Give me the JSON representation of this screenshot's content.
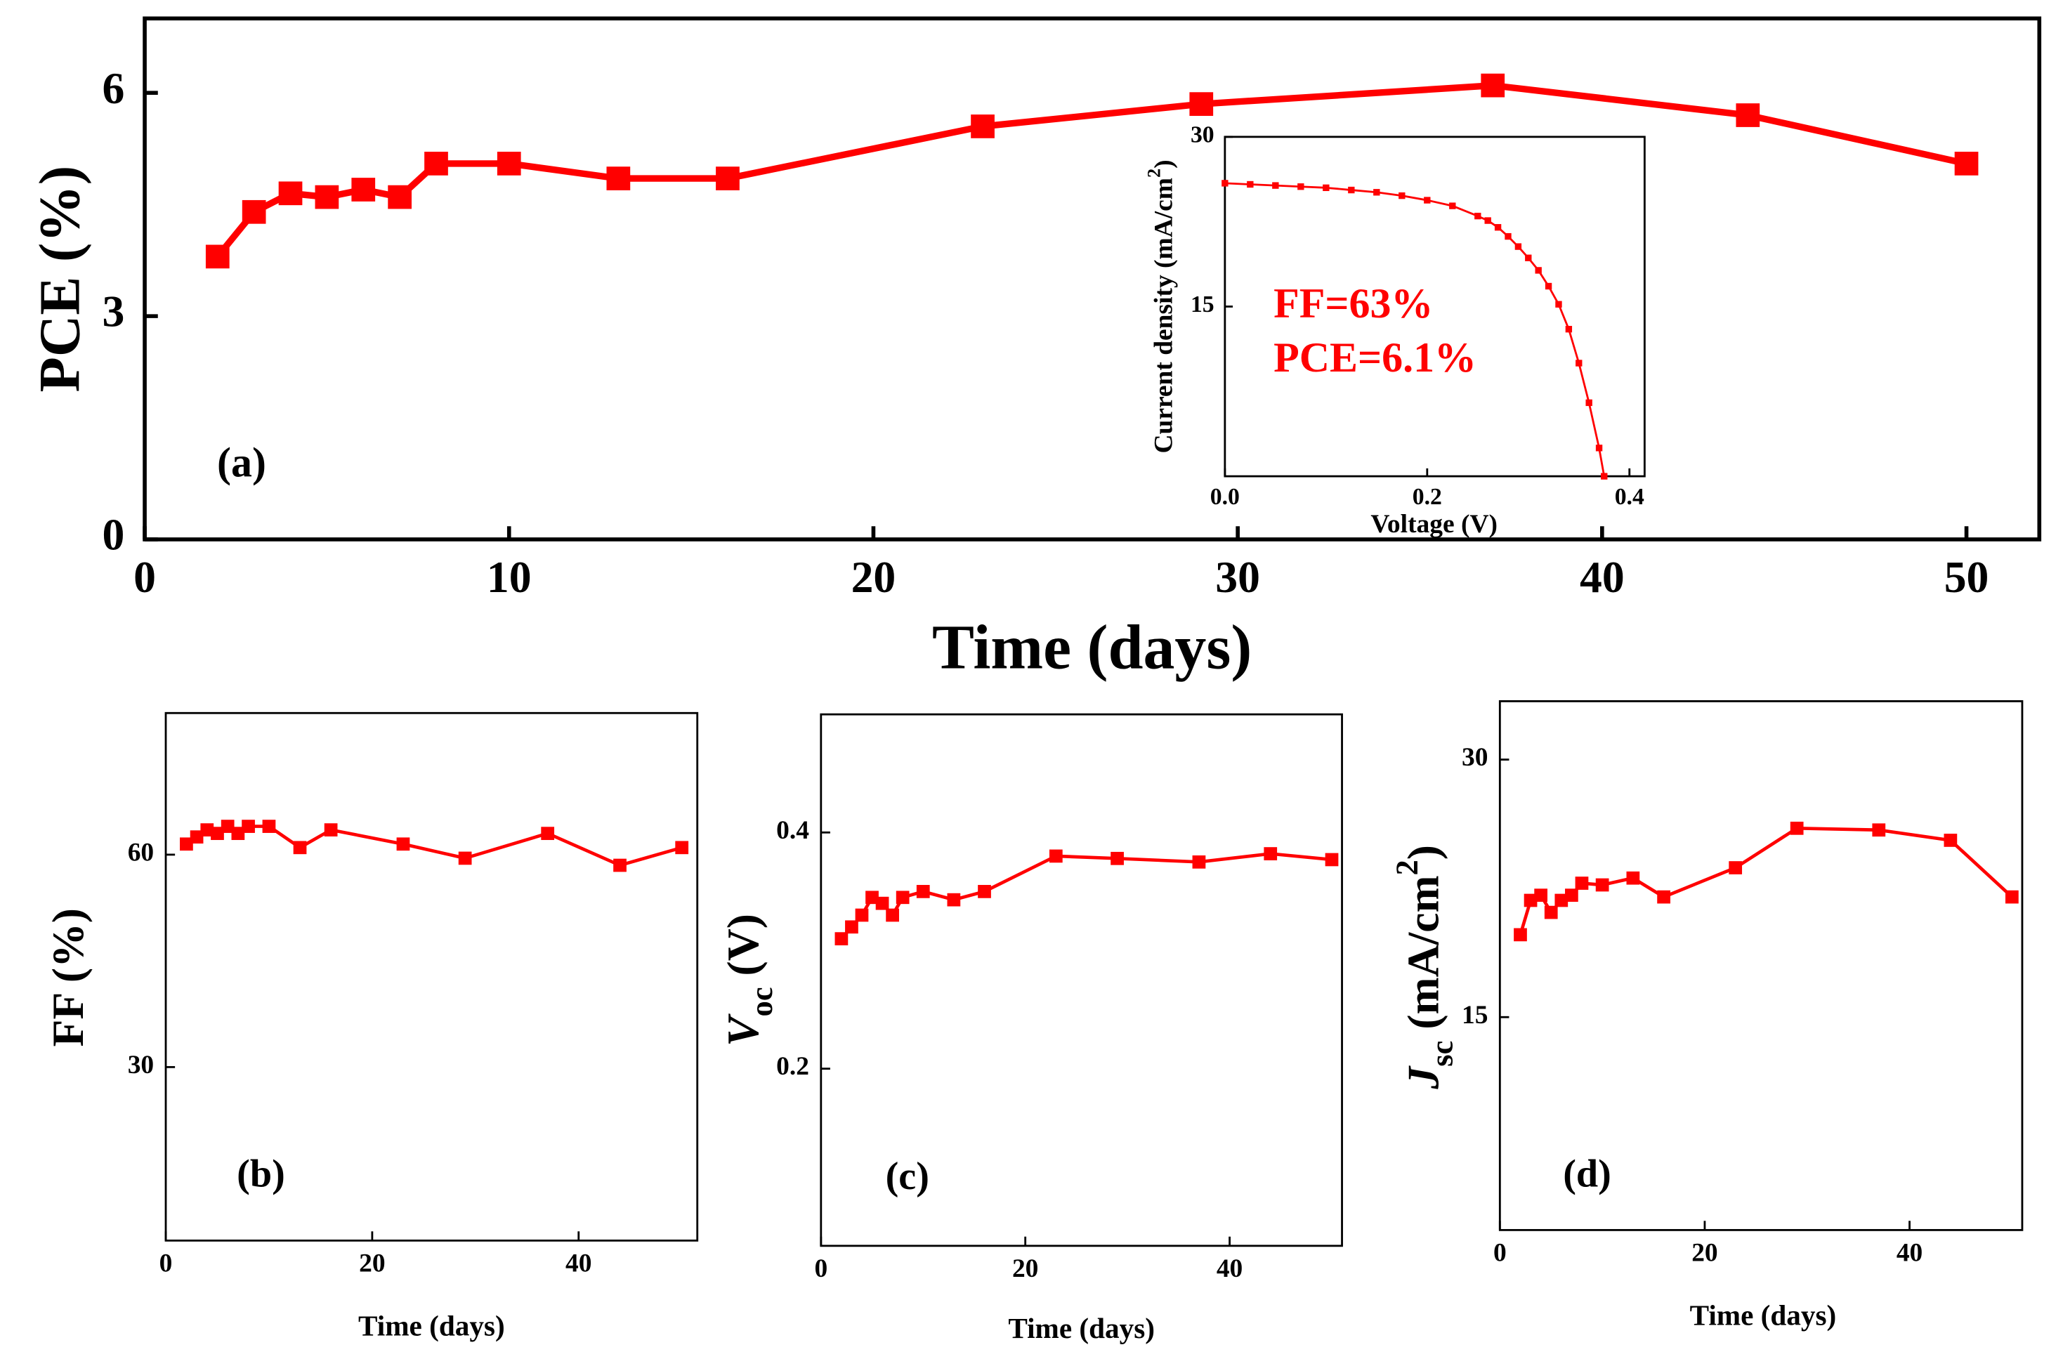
{
  "chart_data": [
    {
      "type": "line",
      "xlabel": "Time (days)",
      "ylabel_parts": [
        {
          "text": "PCE (%)"
        }
      ],
      "x": [
        2,
        3,
        4,
        5,
        6,
        7,
        8,
        10,
        13,
        16,
        23,
        29,
        37,
        44,
        50
      ],
      "series": [
        {
          "color": "#ff0000",
          "values": [
            3.8,
            4.4,
            4.65,
            4.6,
            4.7,
            4.6,
            5.05,
            5.05,
            4.85,
            4.85,
            5.55,
            5.85,
            6.1,
            5.7,
            5.05
          ]
        }
      ],
      "xlim": [
        0,
        52
      ],
      "ylim": [
        0,
        7
      ],
      "xticks": [
        0,
        10,
        20,
        30,
        40,
        50
      ],
      "yticks": [
        0,
        3,
        6
      ],
      "annotations": [
        {
          "text": "(a)"
        }
      ]
    },
    {
      "type": "line",
      "xlabel": "Voltage (V)",
      "ylabel_parts": [
        {
          "text": "Current density (mA/cm"
        },
        {
          "text": "2",
          "style": "sup"
        },
        {
          "text": ")"
        }
      ],
      "x": [
        0,
        0.025,
        0.05,
        0.075,
        0.1,
        0.125,
        0.15,
        0.175,
        0.2,
        0.225,
        0.25,
        0.26,
        0.27,
        0.28,
        0.29,
        0.3,
        0.31,
        0.32,
        0.33,
        0.34,
        0.35,
        0.36,
        0.37,
        0.375
      ],
      "series": [
        {
          "color": "#ff0000",
          "values": [
            25.9,
            25.8,
            25.7,
            25.6,
            25.5,
            25.3,
            25.1,
            24.8,
            24.4,
            23.9,
            23.0,
            22.6,
            22.0,
            21.2,
            20.3,
            19.3,
            18.2,
            16.8,
            15.2,
            13.0,
            10.0,
            6.5,
            2.5,
            0
          ]
        }
      ],
      "xlim": [
        0,
        0.415
      ],
      "ylim": [
        0,
        30
      ],
      "xticks": [
        {
          "value": 0,
          "label": "0.0"
        },
        0.2,
        0.4
      ],
      "yticks": [
        15,
        30
      ],
      "annotations": [
        {
          "text": "FF=63%",
          "color": "#ff0000"
        },
        {
          "text": "PCE=6.1%",
          "color": "#ff0000"
        }
      ]
    },
    {
      "type": "line",
      "xlabel": "Time (days)",
      "ylabel_parts": [
        {
          "text": "FF (%)"
        }
      ],
      "x": [
        2,
        3,
        4,
        5,
        6,
        7,
        8,
        10,
        13,
        16,
        23,
        29,
        37,
        44,
        50
      ],
      "series": [
        {
          "color": "#ff0000",
          "values": [
            61.5,
            62.5,
            63.5,
            63,
            64,
            63,
            64,
            64,
            61,
            63.5,
            61.5,
            59.5,
            63,
            58.5,
            61
          ]
        }
      ],
      "xlim": [
        0,
        51.5
      ],
      "ylim": [
        5.5,
        80
      ],
      "xticks": [
        0,
        20,
        40
      ],
      "yticks": [
        30,
        60
      ],
      "annotations": [
        {
          "text": "(b)"
        }
      ]
    },
    {
      "type": "line",
      "xlabel": "Time (days)",
      "ylabel_parts": [
        {
          "text": "V",
          "style": "italic"
        },
        {
          "text": "oc",
          "style": "sub"
        },
        {
          "text": " (V)"
        }
      ],
      "x": [
        2,
        3,
        4,
        5,
        6,
        7,
        8,
        10,
        13,
        16,
        23,
        29,
        37,
        44,
        50
      ],
      "series": [
        {
          "color": "#ff0000",
          "values": [
            0.31,
            0.32,
            0.33,
            0.345,
            0.34,
            0.33,
            0.345,
            0.35,
            0.343,
            0.35,
            0.38,
            0.378,
            0.375,
            0.382,
            0.377
          ]
        }
      ],
      "xlim": [
        0,
        51
      ],
      "ylim": [
        0.05,
        0.5
      ],
      "xticks": [
        0,
        20,
        40
      ],
      "yticks": [
        0.2,
        0.4
      ],
      "annotations": [
        {
          "text": "(c)"
        }
      ]
    },
    {
      "type": "line",
      "xlabel": "Time (days)",
      "ylabel_parts": [
        {
          "text": "J",
          "style": "italic"
        },
        {
          "text": "sc",
          "style": "sub"
        },
        {
          "text": " (mA/cm"
        },
        {
          "text": "2",
          "style": "sup"
        },
        {
          "text": ")"
        }
      ],
      "x": [
        2,
        3,
        4,
        5,
        6,
        7,
        8,
        10,
        13,
        16,
        23,
        29,
        37,
        44,
        50
      ],
      "series": [
        {
          "color": "#ff0000",
          "values": [
            19.8,
            21.8,
            22.1,
            21.1,
            21.8,
            22.1,
            22.8,
            22.7,
            23.1,
            22.0,
            23.7,
            26.0,
            25.9,
            25.3,
            22.0
          ]
        }
      ],
      "xlim": [
        0,
        51
      ],
      "ylim": [
        2.6,
        33.4
      ],
      "xticks": [
        0,
        20,
        40
      ],
      "yticks": [
        15,
        30
      ],
      "annotations": [
        {
          "text": "(d)"
        }
      ]
    }
  ]
}
